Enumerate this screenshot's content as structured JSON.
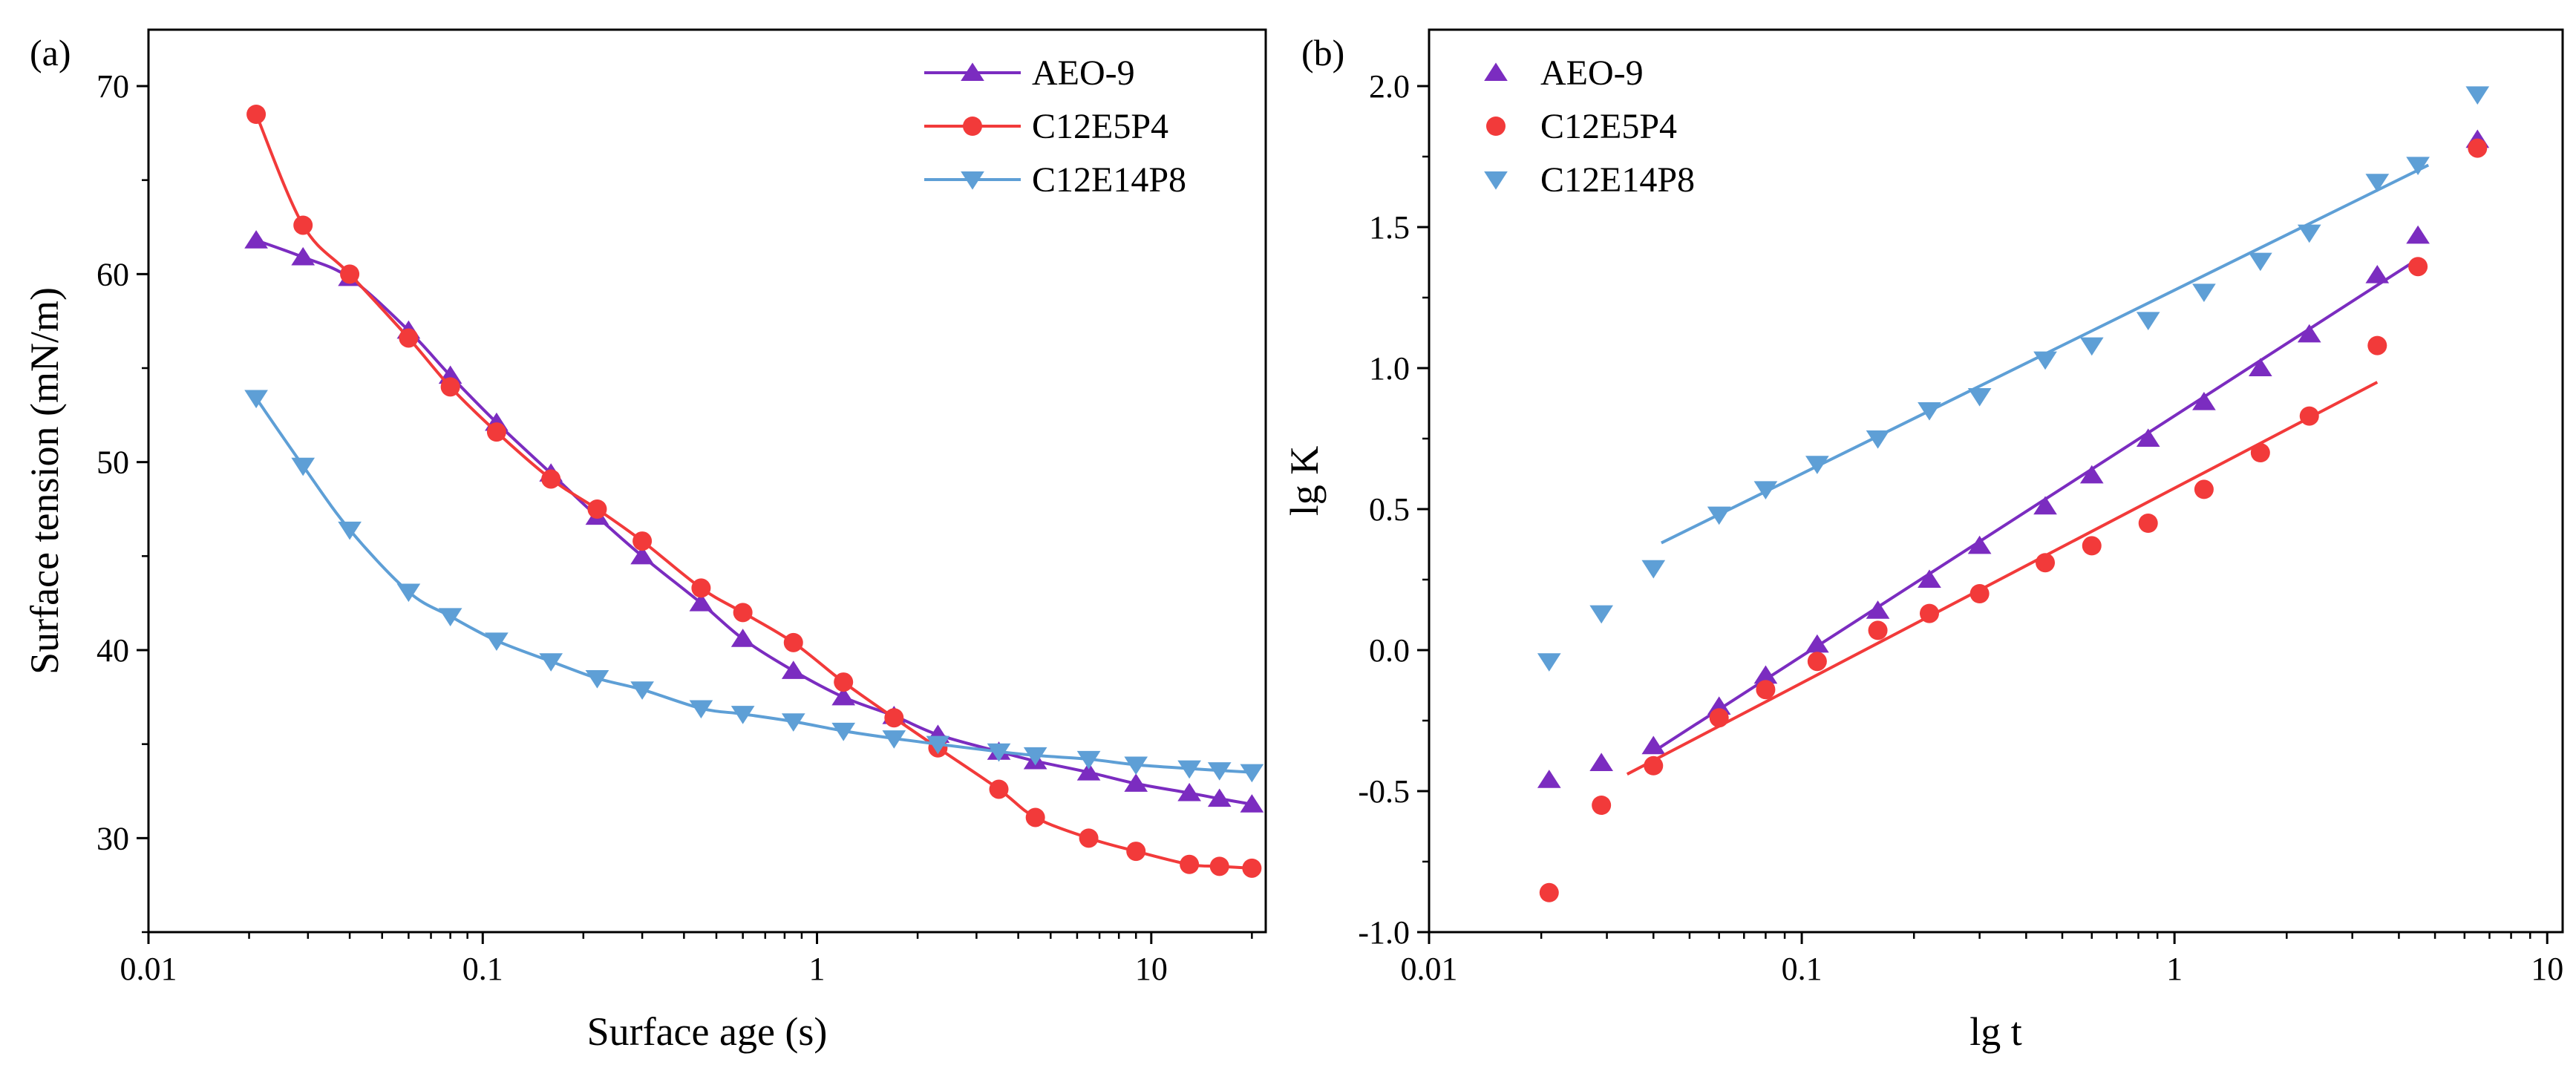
{
  "figure": "Surface tension vs surface age and lg K vs lg t",
  "chart_data": [
    {
      "type": "line",
      "panel_label": "(a)",
      "title": "",
      "xlabel": "Surface age (s)",
      "ylabel": "Surface tension (mN/m)",
      "xscale": "log",
      "xlim": [
        0.01,
        22
      ],
      "ylim": [
        25,
        73
      ],
      "xticks": [
        0.01,
        0.1,
        1,
        10
      ],
      "xtick_labels": [
        "0.01",
        "0.1",
        "1",
        "10"
      ],
      "yticks": [
        30,
        40,
        50,
        60,
        70
      ],
      "ytick_labels": [
        "30",
        "40",
        "50",
        "60",
        "70"
      ],
      "legend_position": "top-right",
      "series": [
        {
          "name": "AEO-9",
          "color": "#7b2cc0",
          "marker": "triangle-up",
          "x": [
            0.021,
            0.029,
            0.04,
            0.06,
            0.08,
            0.11,
            0.16,
            0.22,
            0.3,
            0.45,
            0.6,
            0.85,
            1.2,
            1.7,
            2.3,
            3.5,
            4.5,
            6.5,
            9,
            13,
            16,
            20
          ],
          "y": [
            61.8,
            60.9,
            59.8,
            57.0,
            54.6,
            52.1,
            49.4,
            47.1,
            45.0,
            42.5,
            40.6,
            38.9,
            37.5,
            36.5,
            35.5,
            34.6,
            34.1,
            33.5,
            32.9,
            32.4,
            32.1,
            31.8
          ]
        },
        {
          "name": "C12E5P4",
          "color": "#f23a3a",
          "marker": "circle",
          "x": [
            0.021,
            0.029,
            0.04,
            0.06,
            0.08,
            0.11,
            0.16,
            0.22,
            0.3,
            0.45,
            0.6,
            0.85,
            1.2,
            1.7,
            2.3,
            3.5,
            4.5,
            6.5,
            9,
            13,
            16,
            20
          ],
          "y": [
            68.5,
            62.6,
            60.0,
            56.6,
            54.0,
            51.6,
            49.1,
            47.5,
            45.8,
            43.3,
            42.0,
            40.4,
            38.3,
            36.4,
            34.8,
            32.6,
            31.1,
            30.0,
            29.3,
            28.6,
            28.5,
            28.4
          ]
        },
        {
          "name": "C12E14P8",
          "color": "#5e9fd6",
          "marker": "triangle-down",
          "x": [
            0.021,
            0.029,
            0.04,
            0.06,
            0.08,
            0.11,
            0.16,
            0.22,
            0.3,
            0.45,
            0.6,
            0.85,
            1.2,
            1.7,
            2.3,
            3.5,
            4.5,
            6.5,
            9,
            13,
            16,
            20
          ],
          "y": [
            53.4,
            49.8,
            46.4,
            43.1,
            41.8,
            40.5,
            39.4,
            38.5,
            37.9,
            36.9,
            36.6,
            36.2,
            35.7,
            35.3,
            35.0,
            34.6,
            34.4,
            34.2,
            33.9,
            33.7,
            33.6,
            33.5
          ]
        }
      ]
    },
    {
      "type": "scatter",
      "panel_label": "(b)",
      "title": "",
      "xlabel": "lg t",
      "ylabel": "lg K",
      "xscale": "log",
      "xlim": [
        0.01,
        11
      ],
      "ylim": [
        -1.0,
        2.2
      ],
      "xticks": [
        0.01,
        0.1,
        1,
        10
      ],
      "xtick_labels": [
        "0.01",
        "0.1",
        "1",
        "10"
      ],
      "yticks": [
        -1.0,
        -0.5,
        0.0,
        0.5,
        1.0,
        1.5,
        2.0
      ],
      "ytick_labels": [
        "-1.0",
        "-0.5",
        "0.0",
        "0.5",
        "1.0",
        "1.5",
        "2.0"
      ],
      "legend_position": "top-left",
      "series": [
        {
          "name": "AEO-9",
          "color": "#7b2cc0",
          "marker": "triangle-up",
          "x": [
            0.021,
            0.029,
            0.04,
            0.06,
            0.08,
            0.11,
            0.16,
            0.22,
            0.3,
            0.45,
            0.6,
            0.85,
            1.2,
            1.7,
            2.3,
            3.5,
            4.5,
            6.5
          ],
          "y": [
            -0.46,
            -0.4,
            -0.34,
            -0.2,
            -0.09,
            0.02,
            0.14,
            0.25,
            0.37,
            0.51,
            0.62,
            0.75,
            0.88,
            1.0,
            1.12,
            1.33,
            1.47,
            1.81
          ],
          "fit": {
            "x": [
              0.04,
              4.3
            ],
            "y": [
              -0.36,
              1.37
            ]
          }
        },
        {
          "name": "C12E5P4",
          "color": "#f23a3a",
          "marker": "circle",
          "x": [
            0.021,
            0.029,
            0.04,
            0.06,
            0.08,
            0.11,
            0.16,
            0.22,
            0.3,
            0.45,
            0.6,
            0.85,
            1.2,
            1.7,
            2.3,
            3.5,
            4.5,
            6.5
          ],
          "y": [
            -0.86,
            -0.55,
            -0.41,
            -0.24,
            -0.14,
            -0.04,
            0.07,
            0.13,
            0.2,
            0.31,
            0.37,
            0.45,
            0.57,
            0.7,
            0.83,
            1.08,
            1.36,
            1.78
          ],
          "fit": {
            "x": [
              0.034,
              3.5
            ],
            "y": [
              -0.44,
              0.95
            ]
          }
        },
        {
          "name": "C12E14P8",
          "color": "#5e9fd6",
          "marker": "triangle-down",
          "x": [
            0.021,
            0.029,
            0.04,
            0.06,
            0.08,
            0.11,
            0.16,
            0.22,
            0.3,
            0.45,
            0.6,
            0.85,
            1.2,
            1.7,
            2.3,
            3.5,
            4.5,
            6.5
          ],
          "y": [
            -0.04,
            0.13,
            0.29,
            0.48,
            0.57,
            0.66,
            0.75,
            0.85,
            0.9,
            1.03,
            1.08,
            1.17,
            1.27,
            1.38,
            1.48,
            1.66,
            1.72,
            1.97
          ],
          "fit": {
            "x": [
              0.042,
              4.8
            ],
            "y": [
              0.38,
              1.72
            ]
          }
        }
      ]
    }
  ]
}
